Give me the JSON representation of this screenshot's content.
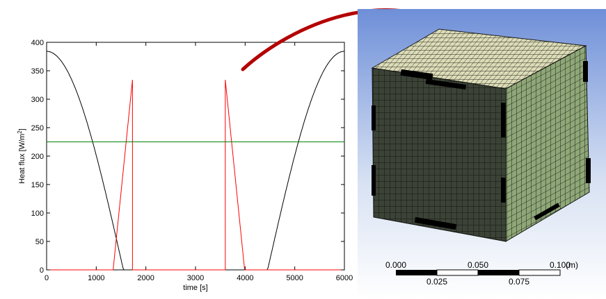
{
  "chart_data": {
    "type": "line",
    "xlabel": "time [s]",
    "ylabel": "Heat flux [W/m",
    "ylabel_sup": "2",
    "ylabel_close": "]",
    "xlim": [
      0,
      6000
    ],
    "ylim": [
      0,
      400
    ],
    "xticks": [
      0,
      1000,
      2000,
      3000,
      4000,
      5000,
      6000
    ],
    "yticks": [
      0,
      50,
      100,
      150,
      200,
      250,
      300,
      350,
      400
    ],
    "grid": false,
    "series": [
      {
        "color": "#000000",
        "function": "cosine",
        "points": [
          [
            0,
            384.2
          ],
          [
            300,
            371.5
          ],
          [
            600,
            326.3
          ],
          [
            900,
            252.5
          ],
          [
            1200,
            153.2
          ],
          [
            1500,
            49.6
          ],
          [
            1660,
            0
          ],
          [
            4340,
            0
          ],
          [
            4500,
            49.6
          ],
          [
            4800,
            153.2
          ],
          [
            5100,
            252.5
          ],
          [
            5400,
            326.3
          ],
          [
            5700,
            371.5
          ],
          [
            6000,
            384.2
          ]
        ]
      },
      {
        "color": "#ff0000",
        "points": [
          [
            0,
            0
          ],
          [
            1340,
            0
          ],
          [
            1730,
            334
          ],
          [
            1730,
            0
          ],
          [
            3600,
            0
          ],
          [
            3600,
            334
          ],
          [
            3990,
            0
          ],
          [
            6000,
            0
          ]
        ]
      },
      {
        "color": "#008000",
        "points": [
          [
            0,
            225
          ],
          [
            6000,
            225
          ]
        ]
      }
    ]
  },
  "mesh_figure": {
    "scale_bar": {
      "labels_top": [
        "0.000",
        "0.050",
        "0.100"
      ],
      "labels_bottom": [
        "0.025",
        "0.075"
      ],
      "unit": "(m)"
    }
  }
}
